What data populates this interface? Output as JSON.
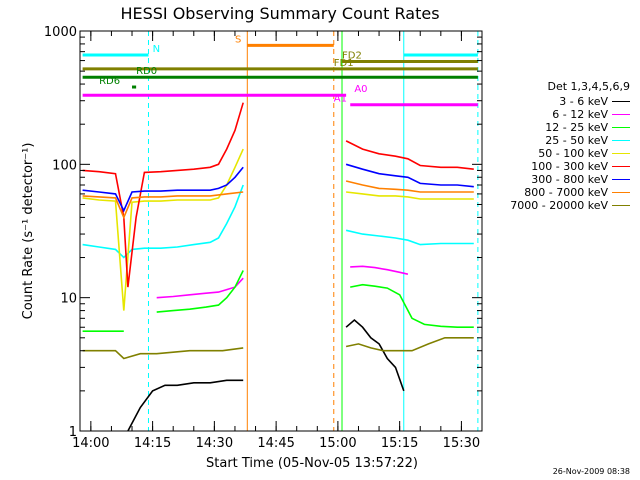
{
  "chart_data": {
    "type": "line",
    "title": "HESSI Observing Summary Count Rates",
    "xlabel": "Start Time (05-Nov-05 13:57:22)",
    "ylabel": "Count Rate (s⁻¹ detector⁻¹)",
    "y_scale": "log",
    "ylim": [
      1,
      1000
    ],
    "xlim": [
      "13:57:22",
      "15:35"
    ],
    "x_ticks": [
      "14:00",
      "14:15",
      "14:30",
      "14:45",
      "15:00",
      "15:15",
      "15:30"
    ],
    "y_ticks": [
      "1",
      "10",
      "100",
      "1000"
    ],
    "grid": false,
    "legend_title": "Det 1,3,4,5,6,9",
    "legend_position": "right",
    "series": [
      {
        "name": "3 - 6 keV",
        "color": "#000000",
        "segments": [
          {
            "x": [
              "14:09",
              "14:12",
              "14:15",
              "14:18",
              "14:21",
              "14:25",
              "14:29",
              "14:33",
              "14:37"
            ],
            "y": [
              1.0,
              1.5,
              2.0,
              2.2,
              2.2,
              2.3,
              2.3,
              2.4,
              2.4
            ]
          },
          {
            "x": [
              "15:02",
              "15:04",
              "15:06",
              "15:08",
              "15:10",
              "15:12",
              "15:14",
              "15:16"
            ],
            "y": [
              6.0,
              6.8,
              6.0,
              5.0,
              4.5,
              3.5,
              3.0,
              2.0
            ]
          }
        ]
      },
      {
        "name": "6 - 12 keV",
        "color": "#ff00ff",
        "segments": [
          {
            "x": [
              "14:16",
              "14:20",
              "14:24",
              "14:28",
              "14:31",
              "14:33",
              "14:35",
              "14:37"
            ],
            "y": [
              10.0,
              10.2,
              10.5,
              10.8,
              11.0,
              11.5,
              12.0,
              14.0
            ]
          },
          {
            "x": [
              "15:03",
              "15:06",
              "15:09",
              "15:12",
              "15:15",
              "15:17"
            ],
            "y": [
              17.0,
              17.2,
              16.8,
              16.2,
              15.5,
              15.0
            ]
          }
        ]
      },
      {
        "name": "12 - 25 keV",
        "color": "#00ff00",
        "segments": [
          {
            "x": [
              "13:58",
              "14:05",
              "14:08"
            ],
            "y": [
              5.6,
              5.6,
              5.6
            ]
          },
          {
            "x": [
              "14:16",
              "14:20",
              "14:24",
              "14:28",
              "14:31",
              "14:33",
              "14:35",
              "14:37"
            ],
            "y": [
              7.8,
              8.0,
              8.2,
              8.5,
              8.8,
              10.0,
              12.0,
              16.0
            ]
          },
          {
            "x": [
              "15:03",
              "15:06",
              "15:09",
              "15:12",
              "15:15",
              "15:18",
              "15:21",
              "15:25",
              "15:29",
              "15:33"
            ],
            "y": [
              12.0,
              12.5,
              12.2,
              11.8,
              10.5,
              7.0,
              6.3,
              6.1,
              6.0,
              6.0
            ]
          }
        ]
      },
      {
        "name": "25 - 50 keV",
        "color": "#00ffff",
        "segments": [
          {
            "x": [
              "13:58",
              "14:02",
              "14:06",
              "14:08",
              "14:10",
              "14:13",
              "14:17",
              "14:21",
              "14:25",
              "14:29",
              "14:31",
              "14:33",
              "14:35",
              "14:37"
            ],
            "y": [
              25.0,
              24.0,
              23.0,
              20.0,
              23.0,
              23.5,
              23.5,
              24.0,
              25.0,
              26.0,
              28.0,
              36.0,
              48.0,
              70.0
            ]
          },
          {
            "x": [
              "15:02",
              "15:06",
              "15:10",
              "15:14",
              "15:17",
              "15:20",
              "15:25",
              "15:29",
              "15:33"
            ],
            "y": [
              32.0,
              30.0,
              29.0,
              28.0,
              27.0,
              25.0,
              25.5,
              25.5,
              25.5
            ]
          }
        ]
      },
      {
        "name": "50 - 100 keV",
        "color": "#e6e600",
        "segments": [
          {
            "x": [
              "13:58",
              "14:02",
              "14:06",
              "14:08",
              "14:10",
              "14:13",
              "14:17",
              "14:21",
              "14:25",
              "14:29",
              "14:31",
              "14:33",
              "14:35",
              "14:37"
            ],
            "y": [
              56.0,
              54.0,
              53.0,
              8.0,
              52.0,
              53.0,
              53.0,
              54.0,
              54.0,
              54.0,
              56.0,
              70.0,
              95.0,
              130.0
            ]
          },
          {
            "x": [
              "15:02",
              "15:06",
              "15:10",
              "15:14",
              "15:17",
              "15:20",
              "15:25",
              "15:29",
              "15:33"
            ],
            "y": [
              62.0,
              60.0,
              58.0,
              58.0,
              57.0,
              55.0,
              55.0,
              55.0,
              55.0
            ]
          }
        ]
      },
      {
        "name": "100 - 300 keV",
        "color": "#ff0000",
        "segments": [
          {
            "x": [
              "13:58",
              "14:02",
              "14:06",
              "14:08",
              "14:09",
              "14:11",
              "14:13",
              "14:17",
              "14:21",
              "14:25",
              "14:29",
              "14:31",
              "14:33",
              "14:35",
              "14:37"
            ],
            "y": [
              90.0,
              88.0,
              85.0,
              40.0,
              12.0,
              40.0,
              87.0,
              88.0,
              90.0,
              92.0,
              95.0,
              100.0,
              130.0,
              180.0,
              290.0
            ]
          },
          {
            "x": [
              "15:02",
              "15:06",
              "15:10",
              "15:14",
              "15:17",
              "15:20",
              "15:25",
              "15:29",
              "15:33"
            ],
            "y": [
              150.0,
              130.0,
              120.0,
              115.0,
              110.0,
              98.0,
              95.0,
              95.0,
              92.0
            ]
          }
        ]
      },
      {
        "name": "300 - 800 keV",
        "color": "#0000ff",
        "segments": [
          {
            "x": [
              "13:58",
              "14:02",
              "14:06",
              "14:08",
              "14:10",
              "14:13",
              "14:17",
              "14:21",
              "14:25",
              "14:29",
              "14:31",
              "14:33",
              "14:35",
              "14:37"
            ],
            "y": [
              64.0,
              62.0,
              60.0,
              45.0,
              62.0,
              63.0,
              63.0,
              64.0,
              64.0,
              64.0,
              66.0,
              70.0,
              80.0,
              95.0
            ]
          },
          {
            "x": [
              "15:02",
              "15:06",
              "15:10",
              "15:14",
              "15:17",
              "15:20",
              "15:25",
              "15:29",
              "15:33"
            ],
            "y": [
              100.0,
              92.0,
              85.0,
              82.0,
              80.0,
              72.0,
              70.0,
              70.0,
              68.0
            ]
          }
        ]
      },
      {
        "name": "800 - 7000 keV",
        "color": "#ff8000",
        "segments": [
          {
            "x": [
              "13:58",
              "14:02",
              "14:06",
              "14:08",
              "14:10",
              "14:13",
              "14:17",
              "14:21",
              "14:25",
              "14:29",
              "14:33",
              "14:37"
            ],
            "y": [
              58.0,
              57.0,
              56.0,
              40.0,
              56.0,
              57.0,
              57.0,
              58.0,
              58.0,
              58.0,
              60.0,
              62.0
            ]
          },
          {
            "x": [
              "15:02",
              "15:06",
              "15:10",
              "15:14",
              "15:17",
              "15:20",
              "15:25",
              "15:29",
              "15:33"
            ],
            "y": [
              75.0,
              70.0,
              66.0,
              65.0,
              64.0,
              62.0,
              62.0,
              62.0,
              62.0
            ]
          }
        ]
      },
      {
        "name": "7000 - 20000 keV",
        "color": "#808000",
        "segments": [
          {
            "x": [
              "13:58",
              "14:02",
              "14:06",
              "14:08",
              "14:12",
              "14:16",
              "14:20",
              "14:24",
              "14:28",
              "14:32",
              "14:37"
            ],
            "y": [
              4.0,
              4.0,
              4.0,
              3.5,
              3.8,
              3.8,
              3.9,
              4.0,
              4.0,
              4.0,
              4.2
            ]
          },
          {
            "x": [
              "15:02",
              "15:05",
              "15:08",
              "15:11",
              "15:14",
              "15:18",
              "15:22",
              "15:26",
              "15:30",
              "15:33"
            ],
            "y": [
              4.3,
              4.5,
              4.2,
              4.0,
              4.0,
              4.0,
              4.5,
              5.0,
              5.0,
              5.0
            ]
          }
        ]
      }
    ],
    "flags": [
      {
        "label": "N",
        "color": "#00ffff",
        "level": 660,
        "segments": [
          [
            "13:58",
            "14:14"
          ],
          [
            "15:16",
            "15:34"
          ]
        ],
        "label_at": "14:15"
      },
      {
        "label": "S",
        "color": "#ff8000",
        "level": 780,
        "segments": [
          [
            "14:38",
            "14:59"
          ]
        ],
        "label_at": "14:35"
      },
      {
        "label": "FD1",
        "color": "#808000",
        "level": 520,
        "segments": [
          [
            "13:58",
            "15:34"
          ]
        ],
        "label_at": "14:59"
      },
      {
        "label": "FD2",
        "color": "#808000",
        "level": 590,
        "segments": [
          [
            "15:01",
            "15:34"
          ]
        ],
        "label_at": "15:01"
      },
      {
        "label": "RD0",
        "color": "#008000",
        "level": 450,
        "segments": [
          [
            "13:58",
            "15:34"
          ]
        ],
        "label_at": "14:11"
      },
      {
        "label": "RD6",
        "color": "#008000",
        "level": 380,
        "segments": [
          [
            "14:10",
            "14:11"
          ]
        ],
        "label_at": "14:02"
      },
      {
        "label": "A0",
        "color": "#ff00ff",
        "level": 330,
        "segments": [
          [
            "13:58",
            "15:02"
          ]
        ],
        "label_at": "15:04"
      },
      {
        "label": "A1",
        "color": "#ff00ff",
        "level": 280,
        "segments": [
          [
            "15:03",
            "15:34"
          ]
        ],
        "label_at": "14:59"
      }
    ],
    "vertical_markers": [
      {
        "time": "13:57:22",
        "color": "#00ffff",
        "style": "solid"
      },
      {
        "time": "14:14",
        "color": "#00ffff",
        "style": "dashed"
      },
      {
        "time": "14:38",
        "color": "#ff8000",
        "style": "solid"
      },
      {
        "time": "14:59",
        "color": "#ff8000",
        "style": "dashed"
      },
      {
        "time": "15:01",
        "color": "#00ff00",
        "style": "solid"
      },
      {
        "time": "15:16",
        "color": "#00ffff",
        "style": "solid"
      },
      {
        "time": "15:34",
        "color": "#00ffff",
        "style": "dashed"
      }
    ]
  },
  "footer": "26-Nov-2009 08:38"
}
